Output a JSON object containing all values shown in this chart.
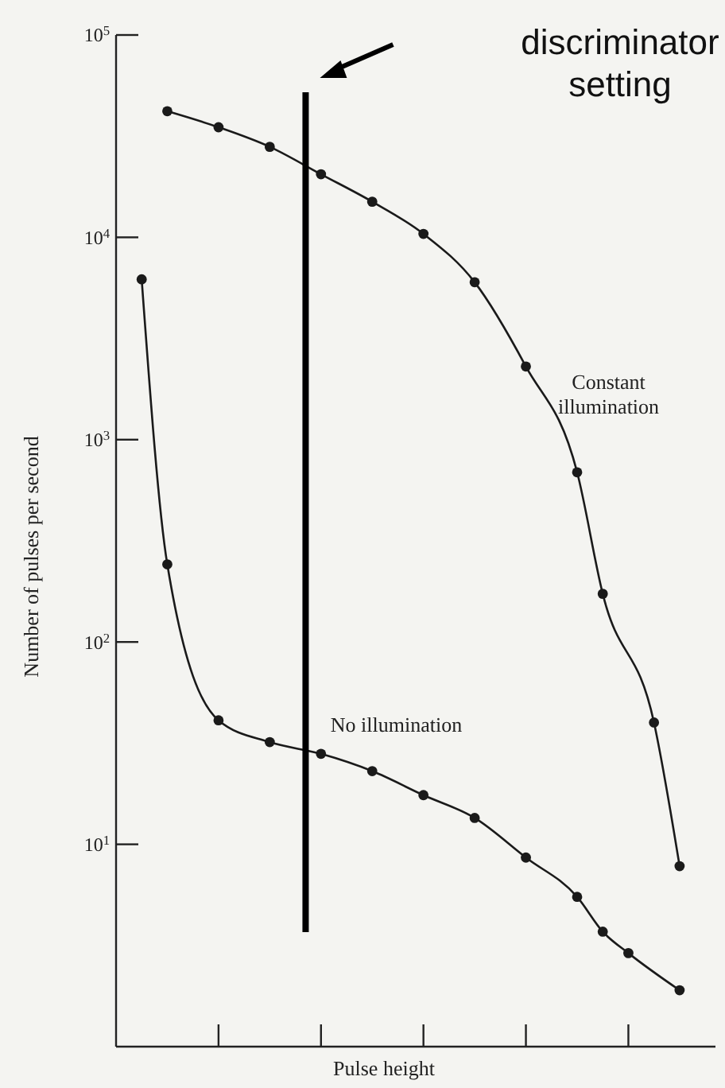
{
  "chart_data": {
    "type": "line",
    "xlabel": "Pulse height",
    "ylabel": "Number of pulses per second",
    "log": "y",
    "grid": false,
    "legend": false,
    "marker": "circle",
    "line_style": "solid",
    "categories": [
      null,
      null,
      null,
      null,
      null,
      null,
      null,
      null,
      null,
      null,
      null,
      null,
      null,
      null,
      null,
      null,
      null,
      null,
      null,
      null,
      null,
      null,
      null
    ],
    "ylim": [
      1,
      100000
    ],
    "yticks": [
      {
        "value": 10,
        "label": "10$^{1}$"
      },
      {
        "value": 100,
        "label": "10$^{2}$"
      },
      {
        "value": 1000,
        "label": "10$^{3}$"
      },
      {
        "value": 10000,
        "label": "10$^{4}$"
      },
      {
        "value": 100000,
        "label": "10$^{5}$"
      }
    ],
    "series": [
      {
        "name": "Constant illumination",
        "color": "#1a1a1a",
        "values": [
          null,
          42000,
          null,
          35000,
          null,
          28000,
          null,
          20500,
          null,
          15000,
          null,
          10400,
          null,
          6000,
          null,
          2300,
          null,
          690,
          173,
          null,
          40,
          7.8,
          null
        ]
      },
      {
        "name": "No illumination",
        "color": "#1a1a1a",
        "values": [
          6200,
          242,
          null,
          41,
          null,
          32,
          null,
          28,
          null,
          23,
          null,
          17.5,
          null,
          13.5,
          null,
          8.6,
          null,
          5.5,
          3.7,
          2.9,
          null,
          1.9,
          null
        ]
      }
    ],
    "annotations": [
      "discriminator setting"
    ]
  }
}
